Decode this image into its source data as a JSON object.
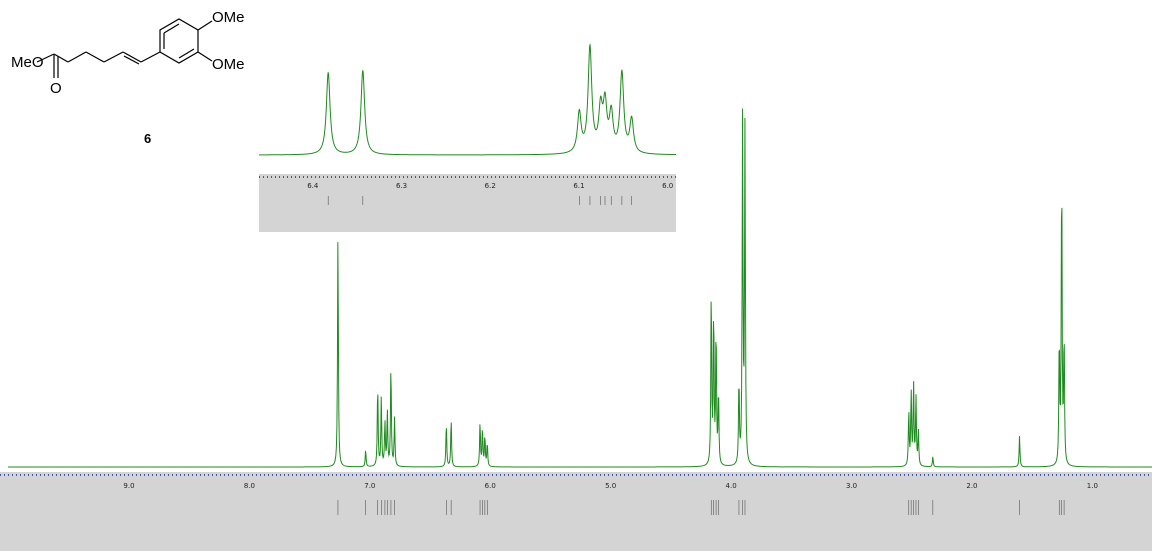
{
  "chart_data": [
    {
      "type": "line",
      "name": "main-spectrum",
      "x_axis": {
        "range": [
          10.0,
          0.5
        ],
        "reversed": true,
        "tick_labels": [
          "9.0",
          "8.0",
          "7.0",
          "6.0",
          "5.0",
          "4.0",
          "3.0",
          "2.0",
          "1.0"
        ],
        "tick_values": [
          9.0,
          8.0,
          7.0,
          6.0,
          5.0,
          4.0,
          3.0,
          2.0,
          1.0
        ]
      },
      "peaks": [
        {
          "ppm": 7.26,
          "height": 0.68
        },
        {
          "ppm": 7.03,
          "height": 0.05
        },
        {
          "ppm": 6.93,
          "height": 0.24
        },
        {
          "ppm": 6.9,
          "height": 0.2
        },
        {
          "ppm": 6.87,
          "height": 0.13
        },
        {
          "ppm": 6.85,
          "height": 0.16
        },
        {
          "ppm": 6.82,
          "height": 0.3
        },
        {
          "ppm": 6.79,
          "height": 0.14
        },
        {
          "ppm": 6.36,
          "height": 0.13
        },
        {
          "ppm": 6.32,
          "height": 0.14
        },
        {
          "ppm": 6.08,
          "height": 0.13
        },
        {
          "ppm": 6.06,
          "height": 0.11
        },
        {
          "ppm": 6.04,
          "height": 0.09
        },
        {
          "ppm": 6.02,
          "height": 0.07
        },
        {
          "ppm": 4.16,
          "height": 0.52
        },
        {
          "ppm": 4.14,
          "height": 0.45
        },
        {
          "ppm": 4.12,
          "height": 0.4
        },
        {
          "ppm": 4.1,
          "height": 0.22
        },
        {
          "ppm": 3.93,
          "height": 0.25
        },
        {
          "ppm": 3.9,
          "height": 1.0
        },
        {
          "ppm": 3.88,
          "height": 0.98
        },
        {
          "ppm": 2.52,
          "height": 0.16
        },
        {
          "ppm": 2.5,
          "height": 0.22
        },
        {
          "ppm": 2.48,
          "height": 0.24
        },
        {
          "ppm": 2.46,
          "height": 0.2
        },
        {
          "ppm": 2.44,
          "height": 0.1
        },
        {
          "ppm": 2.32,
          "height": 0.03
        },
        {
          "ppm": 1.6,
          "height": 0.09
        },
        {
          "ppm": 1.27,
          "height": 0.37
        },
        {
          "ppm": 1.25,
          "height": 0.88
        },
        {
          "ppm": 1.23,
          "height": 0.38
        }
      ]
    },
    {
      "type": "line",
      "name": "expanded-inset",
      "x_axis": {
        "range": [
          6.46,
          5.99
        ],
        "reversed": true,
        "tick_labels": [
          "6.4",
          "6.3",
          "6.2",
          "6.1",
          "6.0"
        ],
        "tick_values": [
          6.4,
          6.3,
          6.2,
          6.1,
          6.0
        ]
      },
      "peaks": [
        {
          "ppm": 6.382,
          "height": 0.78
        },
        {
          "ppm": 6.343,
          "height": 0.8
        },
        {
          "ppm": 6.099,
          "height": 0.38
        },
        {
          "ppm": 6.087,
          "height": 1.0
        },
        {
          "ppm": 6.075,
          "height": 0.4
        },
        {
          "ppm": 6.07,
          "height": 0.44
        },
        {
          "ppm": 6.063,
          "height": 0.36
        },
        {
          "ppm": 6.051,
          "height": 0.76
        },
        {
          "ppm": 6.04,
          "height": 0.32
        }
      ]
    }
  ],
  "structure": {
    "compound_number": "6",
    "substituent_labels": [
      "MeO",
      "O",
      "OMe",
      "OMe"
    ]
  },
  "colors": {
    "spectrum": "#1f8a1f",
    "integral_bar": "#d4d4d4",
    "axis_dots": "#3b55b0"
  }
}
